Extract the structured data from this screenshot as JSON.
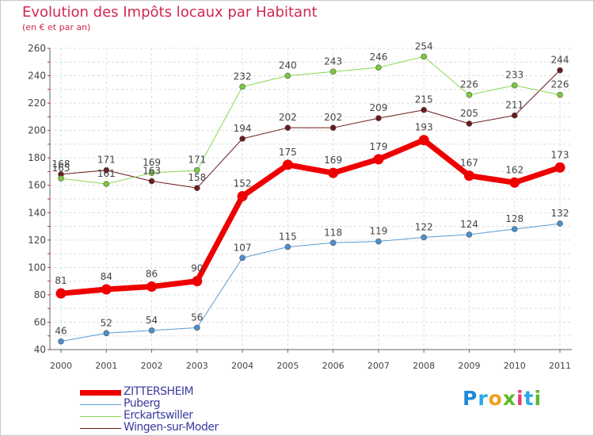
{
  "title": "Evolution des Impôts locaux par Habitant",
  "subtitle": "(en € et par an)",
  "logo": {
    "letters": [
      "P",
      "r",
      "o",
      "x",
      "i",
      "t",
      "i"
    ],
    "colors": [
      "#1e88d8",
      "#2aa9e6",
      "#f0a020",
      "#5cb82e",
      "#e63c7c",
      "#2aa9e6",
      "#5cb82e"
    ]
  },
  "chart_data": {
    "type": "line",
    "title": "Evolution des Impôts locaux par Habitant",
    "subtitle": "(en € et par an)",
    "xlabel": "",
    "ylabel": "",
    "categories": [
      "2000",
      "2001",
      "2002",
      "2003",
      "2004",
      "2005",
      "2006",
      "2007",
      "2008",
      "2009",
      "2010",
      "2011"
    ],
    "yticks": [
      "40",
      "60",
      "80",
      "100",
      "120",
      "140",
      "160",
      "180",
      "200",
      "220",
      "240",
      "260"
    ],
    "ylim": [
      40,
      260
    ],
    "grid": true,
    "legend_position": "bottom-left",
    "series": [
      {
        "name": "Wingen-sur-Moder",
        "color": "#6b1a1a",
        "marker": "#6b1a1a",
        "width": 1,
        "r": 3.5,
        "values": [
          168,
          171,
          163,
          158,
          194,
          202,
          202,
          209,
          215,
          205,
          211,
          244
        ],
        "labels": [
          "168",
          "171",
          "163",
          "158",
          "194",
          "202",
          "202",
          "209",
          "215",
          "205",
          "211",
          "244"
        ]
      },
      {
        "name": "Erckartswiller",
        "color": "#88d850",
        "marker": "#7cc83c",
        "width": 1,
        "r": 3.5,
        "values": [
          165,
          161,
          169,
          171,
          232,
          240,
          243,
          246,
          254,
          226,
          233,
          226
        ],
        "labels": [
          "165",
          "161",
          "169",
          "171",
          "232",
          "240",
          "243",
          "246",
          "254",
          "226",
          "233",
          "226"
        ]
      },
      {
        "name": "Puberg",
        "color": "#5b9bd2",
        "marker": "#4a8fd0",
        "width": 1,
        "r": 3.5,
        "values": [
          46,
          52,
          54,
          56,
          107,
          115,
          118,
          119,
          122,
          124,
          128,
          132
        ],
        "labels": [
          "46",
          "52",
          "54",
          "56",
          "107",
          "115",
          "118",
          "119",
          "122",
          "124",
          "128",
          "132"
        ]
      },
      {
        "name": "ZITTERSHEIM",
        "color": "#ee0000",
        "marker": "#ee0000",
        "width": 7,
        "r": 6.5,
        "values": [
          81,
          84,
          86,
          90,
          152,
          175,
          169,
          179,
          193,
          167,
          162,
          173
        ],
        "labels": [
          "81",
          "84",
          "86",
          "90",
          "152",
          "175",
          "169",
          "179",
          "193",
          "167",
          "162",
          "173"
        ]
      }
    ],
    "legend": [
      {
        "name": "ZITTERSHEIM",
        "color": "#ee0000",
        "width": 7
      },
      {
        "name": "Puberg",
        "color": "#5b9bd2",
        "width": 1
      },
      {
        "name": "Erckartswiller",
        "color": "#88d850",
        "width": 1
      },
      {
        "name": "Wingen-sur-Moder",
        "color": "#6b1a1a",
        "width": 1
      }
    ]
  }
}
